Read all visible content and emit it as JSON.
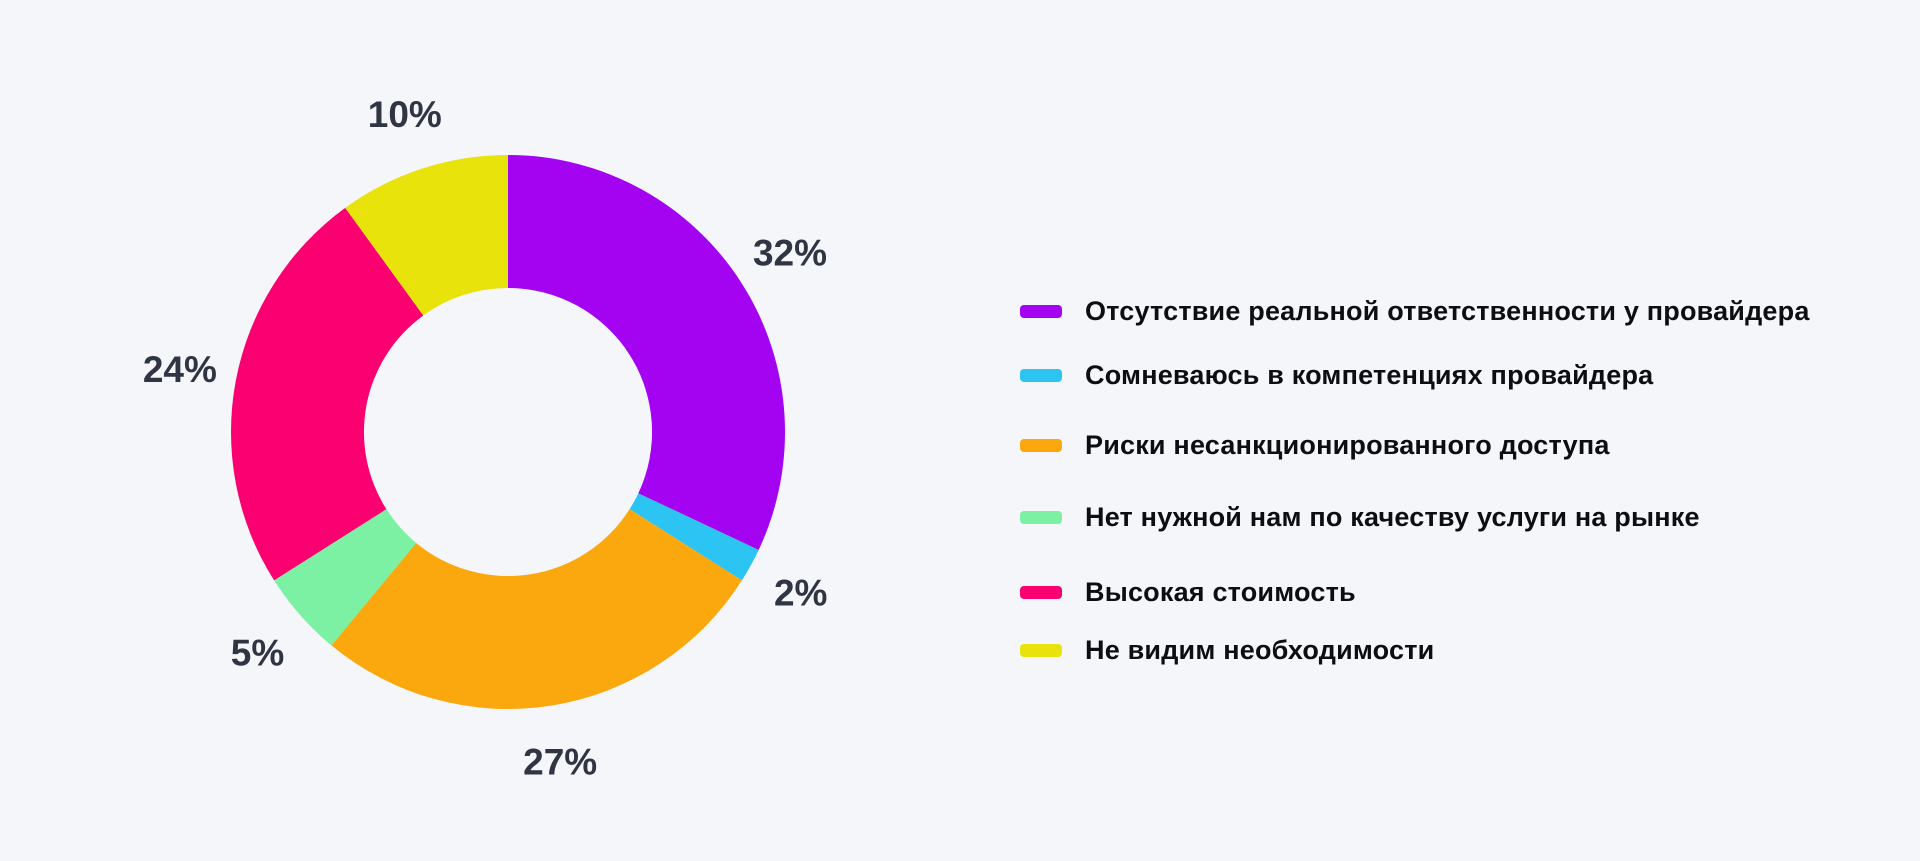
{
  "page": {
    "background_color": "#F5F6FA"
  },
  "chart_data": {
    "type": "pie",
    "subtype": "donut",
    "title": "",
    "start_angle_deg": 0,
    "direction": "clockwise",
    "inner_radius_ratio": 0.52,
    "legend_position": "right",
    "grid": false,
    "label_color": "#2F3542",
    "legend_text_color": "#0D0E12",
    "series": [
      {
        "label": "Отсутствие реальной ответственности у провайдера",
        "value": 32,
        "pct_label": "32%",
        "color": "#A403F2"
      },
      {
        "label": "Сомневаюсь в компетенциях провайдера",
        "value": 2,
        "pct_label": "2%",
        "color": "#2BC4F3"
      },
      {
        "label": "Риски несанкционированного доступа",
        "value": 27,
        "pct_label": "27%",
        "color": "#FBA70E"
      },
      {
        "label": "Нет нужной нам по качеству услуги на рынке",
        "value": 5,
        "pct_label": "5%",
        "color": "#7CF1A3"
      },
      {
        "label": "Высокая стоимость",
        "value": 24,
        "pct_label": "24%",
        "color": "#FB0070"
      },
      {
        "label": "Не видим необходимости",
        "value": 10,
        "pct_label": "10%",
        "color": "#E7E30B"
      }
    ]
  }
}
